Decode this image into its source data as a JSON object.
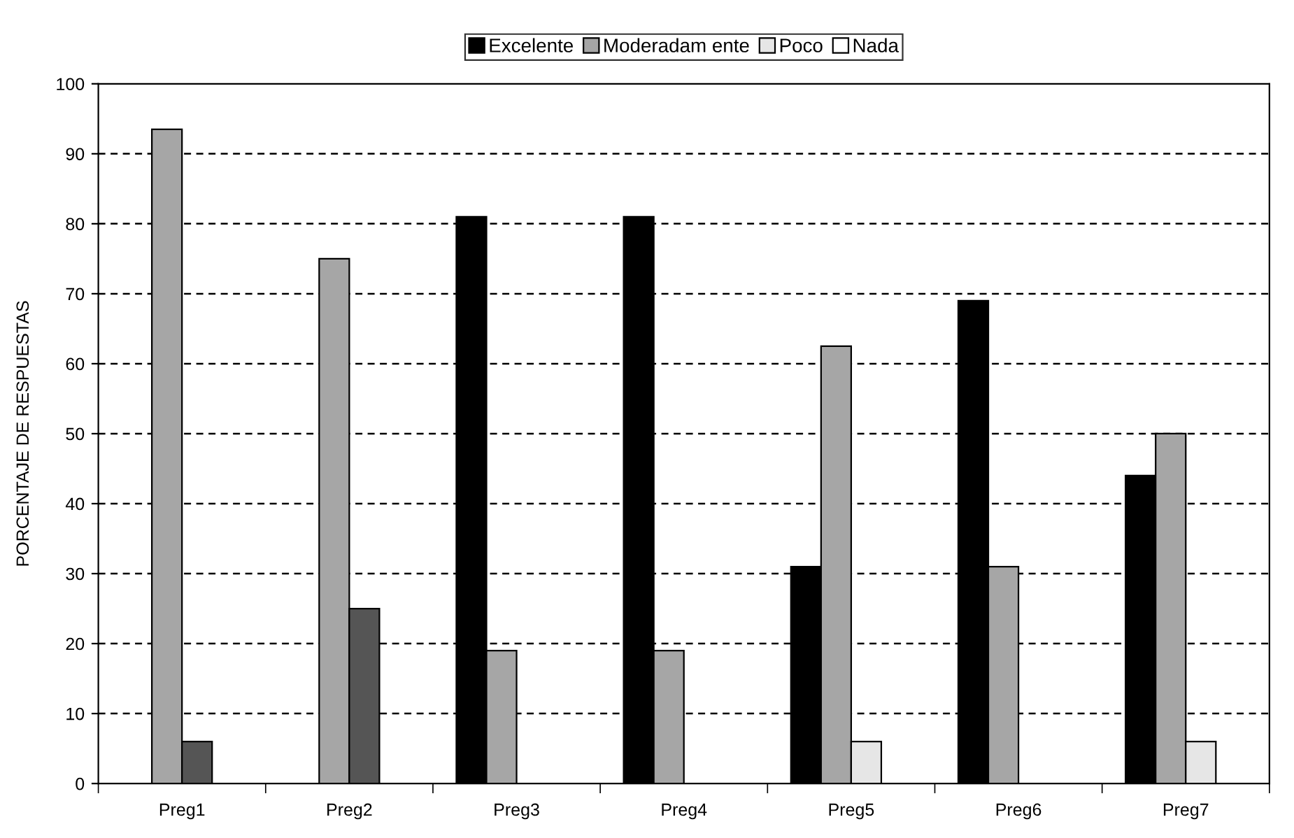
{
  "chart_data": {
    "type": "bar",
    "ylabel": "PORCENTAJE DE RESPUESTAS",
    "categories": [
      "Preg1",
      "Preg2",
      "Preg3",
      "Preg4",
      "Preg5",
      "Preg6",
      "Preg7"
    ],
    "series": [
      {
        "name": "Excelente",
        "color": "#000000",
        "values": [
          null,
          null,
          81,
          81,
          31,
          69,
          44
        ]
      },
      {
        "name": "Moderadam ente",
        "color": "#a6a6a6",
        "values": [
          93.5,
          75,
          19,
          19,
          62.5,
          31,
          50
        ]
      },
      {
        "name": "Poco",
        "color": "#e6e6e6",
        "colors": [
          "#555555",
          "#555555",
          "#e6e6e6",
          "#e6e6e6",
          "#e6e6e6",
          "#e6e6e6",
          "#e6e6e6"
        ],
        "values": [
          6,
          25,
          null,
          null,
          6,
          null,
          6
        ]
      },
      {
        "name": "Nada",
        "color": "#ffffff",
        "values": [
          null,
          null,
          null,
          null,
          null,
          null,
          null
        ]
      }
    ],
    "ylim": [
      0,
      100
    ],
    "yticks": [
      0,
      10,
      20,
      30,
      40,
      50,
      60,
      70,
      80,
      90,
      100
    ],
    "grid": "y",
    "legend": "top"
  }
}
